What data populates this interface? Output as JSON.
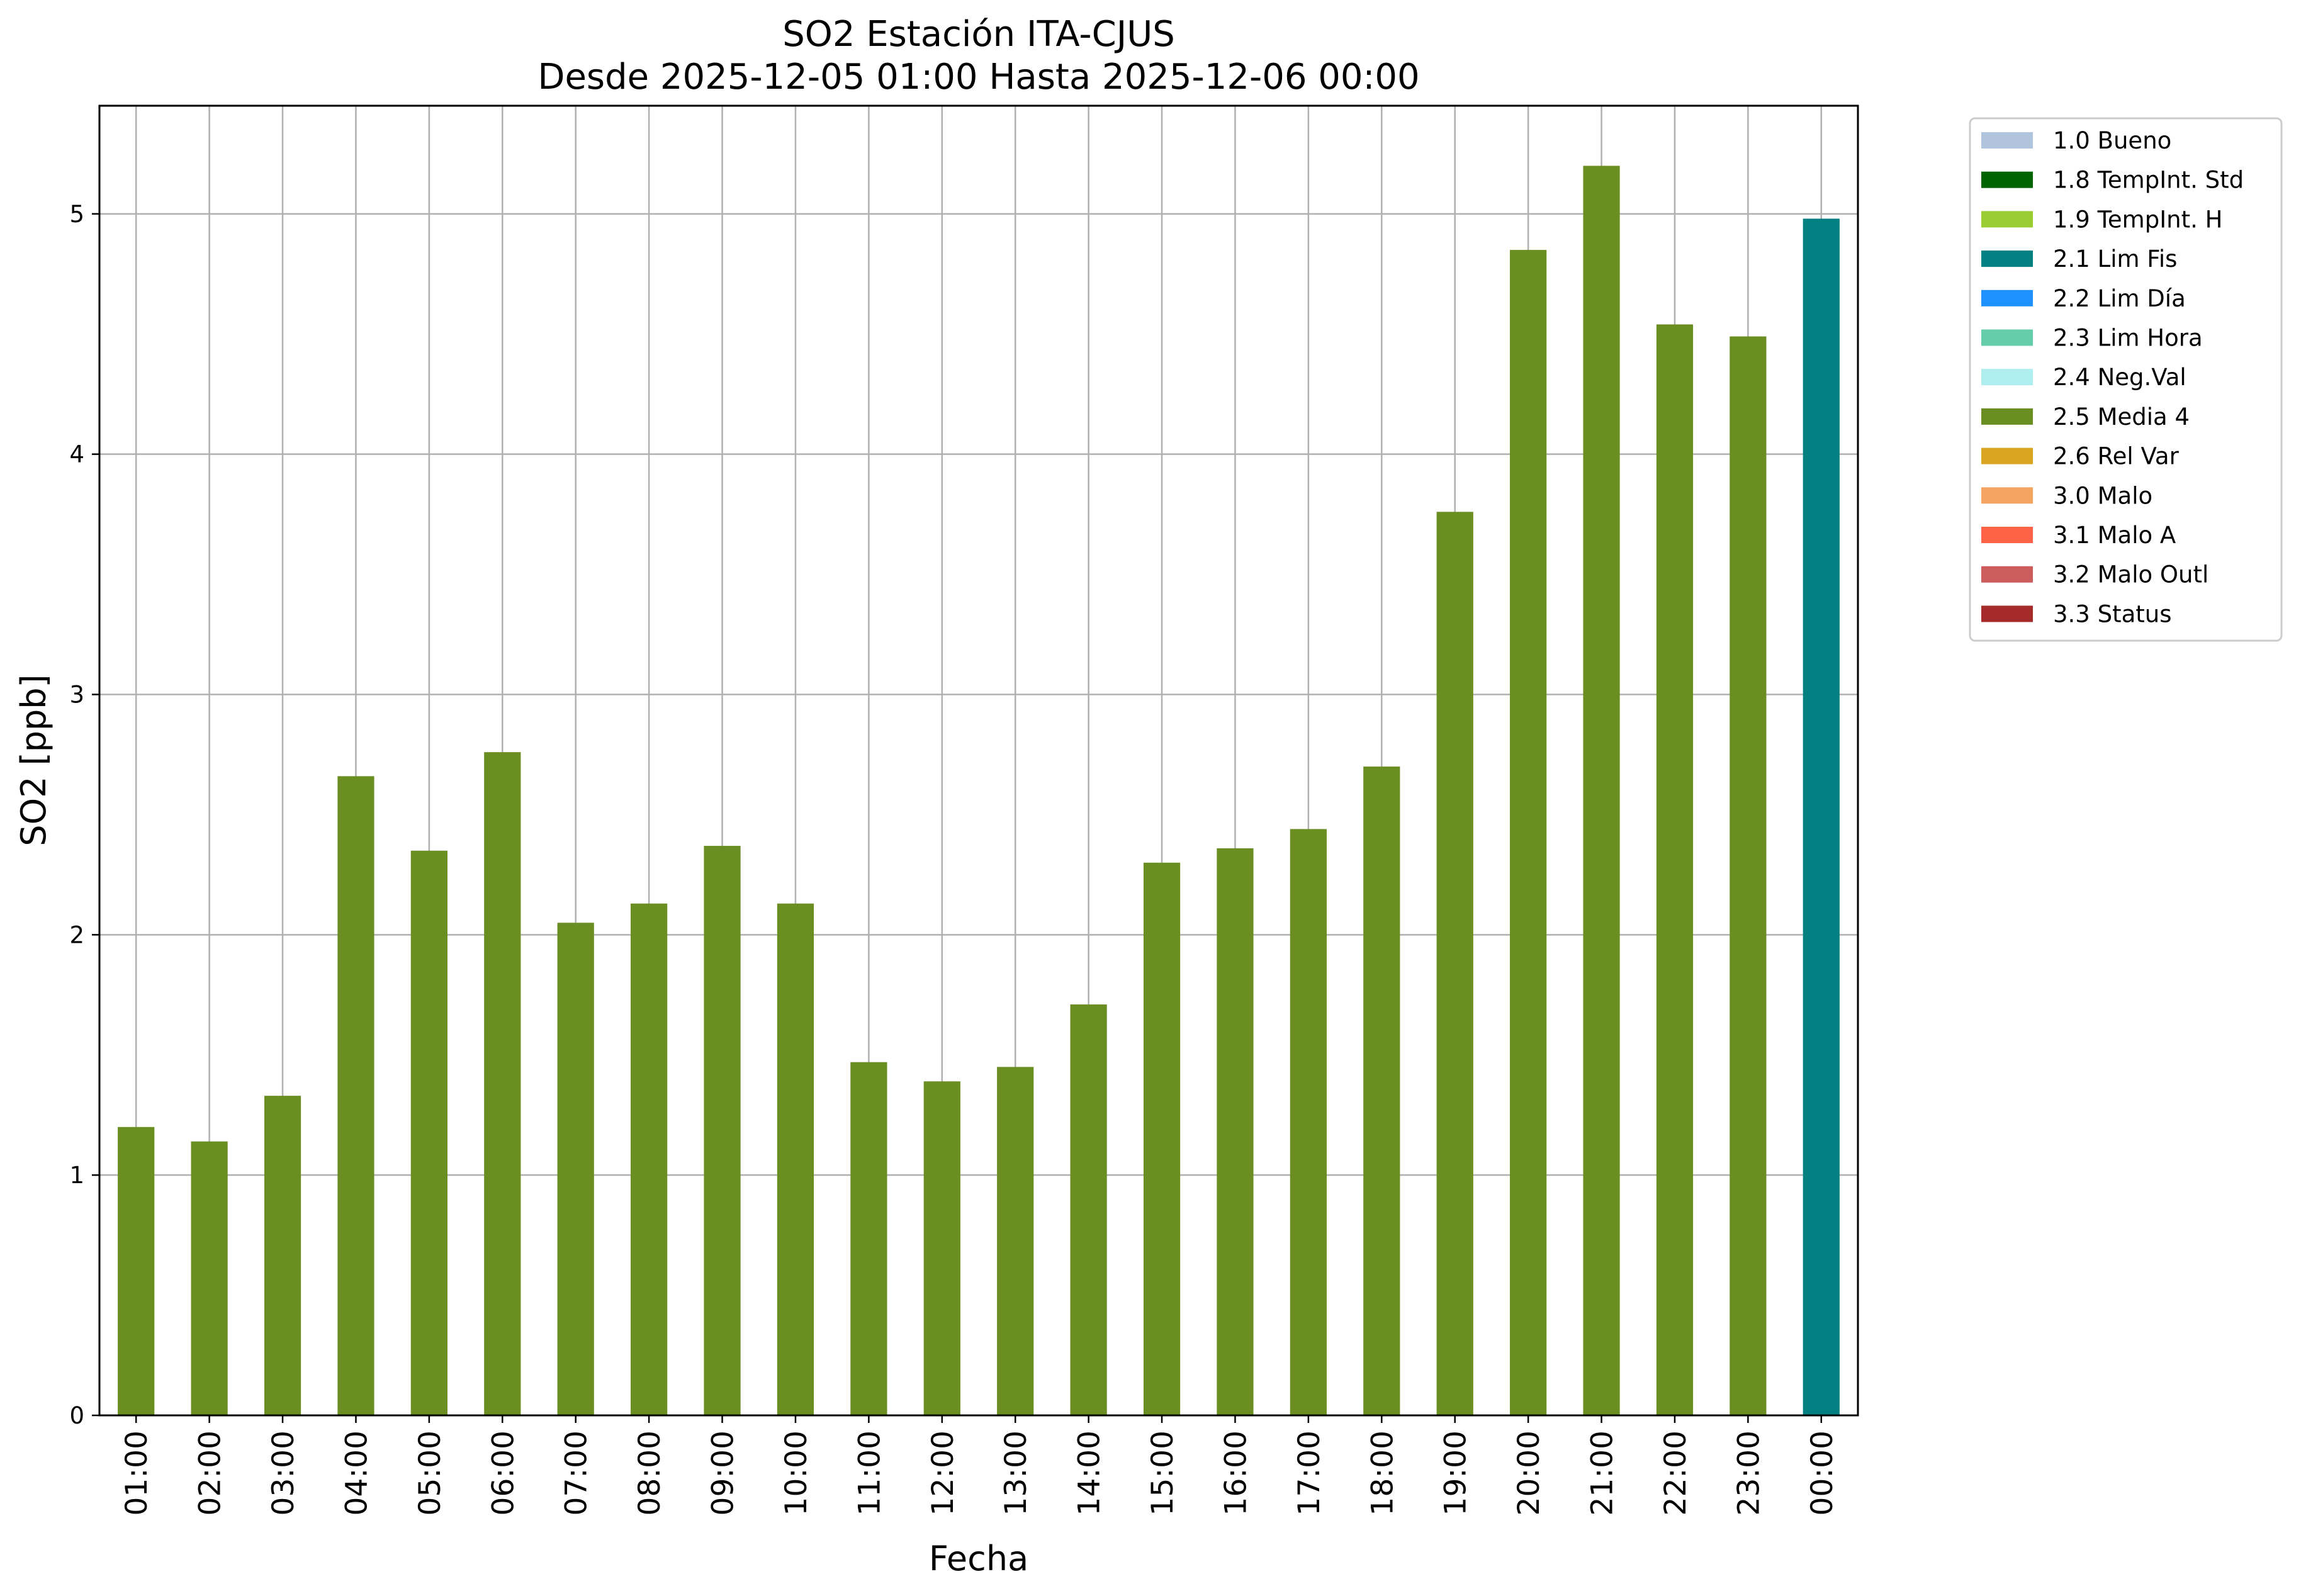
{
  "chart_data": {
    "type": "bar",
    "title": "SO2 Estación ITA-CJUS",
    "subtitle": "Desde 2025-12-05 01:00 Hasta 2025-12-06 00:00",
    "xlabel": "Fecha",
    "ylabel": "SO2 [ppb]",
    "ylim": [
      0,
      5.45
    ],
    "yticks": [
      "0",
      "1",
      "2",
      "3",
      "4",
      "5"
    ],
    "grid": true,
    "legend_position": "outside-right",
    "categories": [
      "01:00",
      "02:00",
      "03:00",
      "04:00",
      "05:00",
      "06:00",
      "07:00",
      "08:00",
      "09:00",
      "10:00",
      "11:00",
      "12:00",
      "13:00",
      "14:00",
      "15:00",
      "16:00",
      "17:00",
      "18:00",
      "19:00",
      "20:00",
      "21:00",
      "22:00",
      "23:00",
      "00:00"
    ],
    "values": [
      1.2,
      1.14,
      1.33,
      2.66,
      2.35,
      2.76,
      2.05,
      2.13,
      2.37,
      2.13,
      1.47,
      1.39,
      1.45,
      1.71,
      2.3,
      2.36,
      2.44,
      2.7,
      3.76,
      4.85,
      5.2,
      4.54,
      4.49,
      4.98
    ],
    "flags": [
      "2.5 Media 4",
      "2.5 Media 4",
      "2.5 Media 4",
      "2.5 Media 4",
      "2.5 Media 4",
      "2.5 Media 4",
      "2.5 Media 4",
      "2.5 Media 4",
      "2.5 Media 4",
      "2.5 Media 4",
      "2.5 Media 4",
      "2.5 Media 4",
      "2.5 Media 4",
      "2.5 Media 4",
      "2.5 Media 4",
      "2.5 Media 4",
      "2.5 Media 4",
      "2.5 Media 4",
      "2.5 Media 4",
      "2.5 Media 4",
      "2.5 Media 4",
      "2.5 Media 4",
      "2.5 Media 4",
      "2.1 Lim Fis"
    ],
    "legend": [
      {
        "label": "1.0 Bueno",
        "color": "#b0c4de"
      },
      {
        "label": "1.8 TempInt. Std",
        "color": "#006400"
      },
      {
        "label": "1.9 TempInt. H",
        "color": "#9acd32"
      },
      {
        "label": "2.1 Lim Fis",
        "color": "#008080"
      },
      {
        "label": "2.2 Lim Día",
        "color": "#1e90ff"
      },
      {
        "label": "2.3 Lim Hora",
        "color": "#66cdaa"
      },
      {
        "label": "2.4 Neg.Val",
        "color": "#afeeee"
      },
      {
        "label": "2.5 Media 4",
        "color": "#6b8e23"
      },
      {
        "label": "2.6 Rel Var",
        "color": "#daa520"
      },
      {
        "label": "3.0 Malo",
        "color": "#f4a460"
      },
      {
        "label": "3.1 Malo A",
        "color": "#ff6347"
      },
      {
        "label": "3.2 Malo Outl",
        "color": "#cd5c5c"
      },
      {
        "label": "3.3 Status",
        "color": "#a52a2a"
      }
    ]
  }
}
